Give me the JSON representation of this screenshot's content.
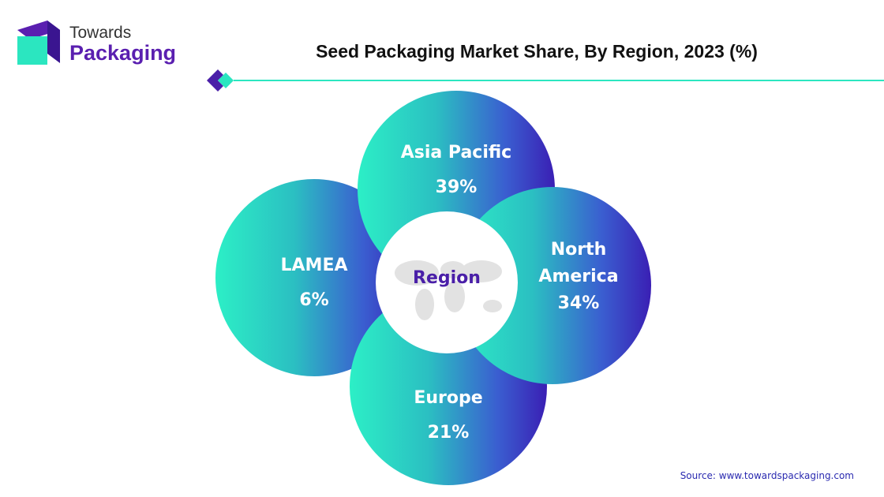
{
  "logo": {
    "line1": "Towards",
    "line2": "Packaging"
  },
  "title": "Seed Packaging Market Share, By Region, 2023 (%)",
  "center": "Region",
  "regions": [
    {
      "name": "LAMEA",
      "share": "6%"
    },
    {
      "name": "Asia Pacific",
      "share": "39%"
    },
    {
      "name": "Europe",
      "share": "21%"
    },
    {
      "name": "North America",
      "share": "34%"
    }
  ],
  "source": "Source: www.towardspackaging.com"
}
